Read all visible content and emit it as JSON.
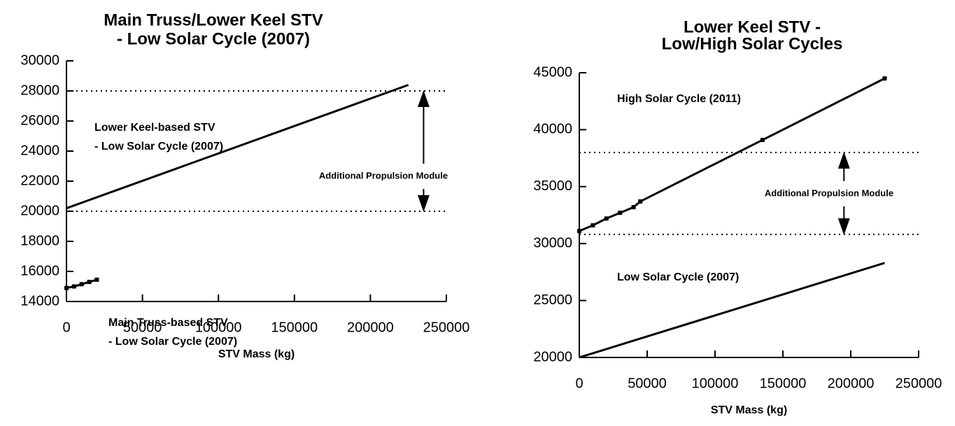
{
  "chart_data": [
    {
      "type": "line",
      "title": [
        "Main Truss/Lower Keel STV",
        "- Low Solar Cycle (2007)"
      ],
      "x_label": "STV Mass (kg)",
      "xlim": [
        0,
        250000
      ],
      "xticks": [
        0,
        50000,
        100000,
        150000,
        200000,
        250000
      ],
      "ylim": [
        14000,
        30000
      ],
      "yticks": [
        14000,
        16000,
        18000,
        20000,
        22000,
        24000,
        26000,
        28000,
        30000
      ],
      "hlines": [
        28000,
        20000
      ],
      "annotation": "Additional Propulsion Module",
      "series": [
        {
          "name": [
            "Lower Keel-based STV",
            "- Low Solar Cycle (2007)"
          ],
          "color": "#000000",
          "markers": false,
          "x": [
            0,
            225000
          ],
          "values": [
            20200,
            28400
          ]
        },
        {
          "name": [
            "Main Truss-based STV",
            "- Low Solar Cycle (2007)"
          ],
          "color": "#000000",
          "markers": true,
          "x": [
            0,
            5000,
            10000,
            15000,
            20000
          ],
          "values": [
            14900,
            15000,
            15150,
            15300,
            15450
          ]
        }
      ]
    },
    {
      "type": "line",
      "title": [
        "Lower Keel STV -",
        "Low/High Solar Cycles"
      ],
      "x_label": "STV Mass (kg)",
      "xlim": [
        0,
        250000
      ],
      "xticks": [
        0,
        50000,
        100000,
        150000,
        200000,
        250000
      ],
      "ylim": [
        20000,
        45000
      ],
      "yticks": [
        20000,
        25000,
        30000,
        35000,
        40000,
        45000
      ],
      "hlines": [
        38000,
        30800
      ],
      "annotation": "Additional Propulsion Module",
      "series": [
        {
          "name": [
            "High Solar Cycle (2011)"
          ],
          "color": "#000000",
          "markers": true,
          "x": [
            0,
            10000,
            20000,
            30000,
            40000,
            45000,
            135000,
            225000
          ],
          "values": [
            31100,
            31600,
            32200,
            32700,
            33200,
            33700,
            39100,
            44500
          ]
        },
        {
          "name": [
            "Low Solar Cycle (2007)"
          ],
          "color": "#000000",
          "markers": false,
          "x": [
            0,
            225000
          ],
          "values": [
            20000,
            28300
          ]
        }
      ]
    }
  ]
}
